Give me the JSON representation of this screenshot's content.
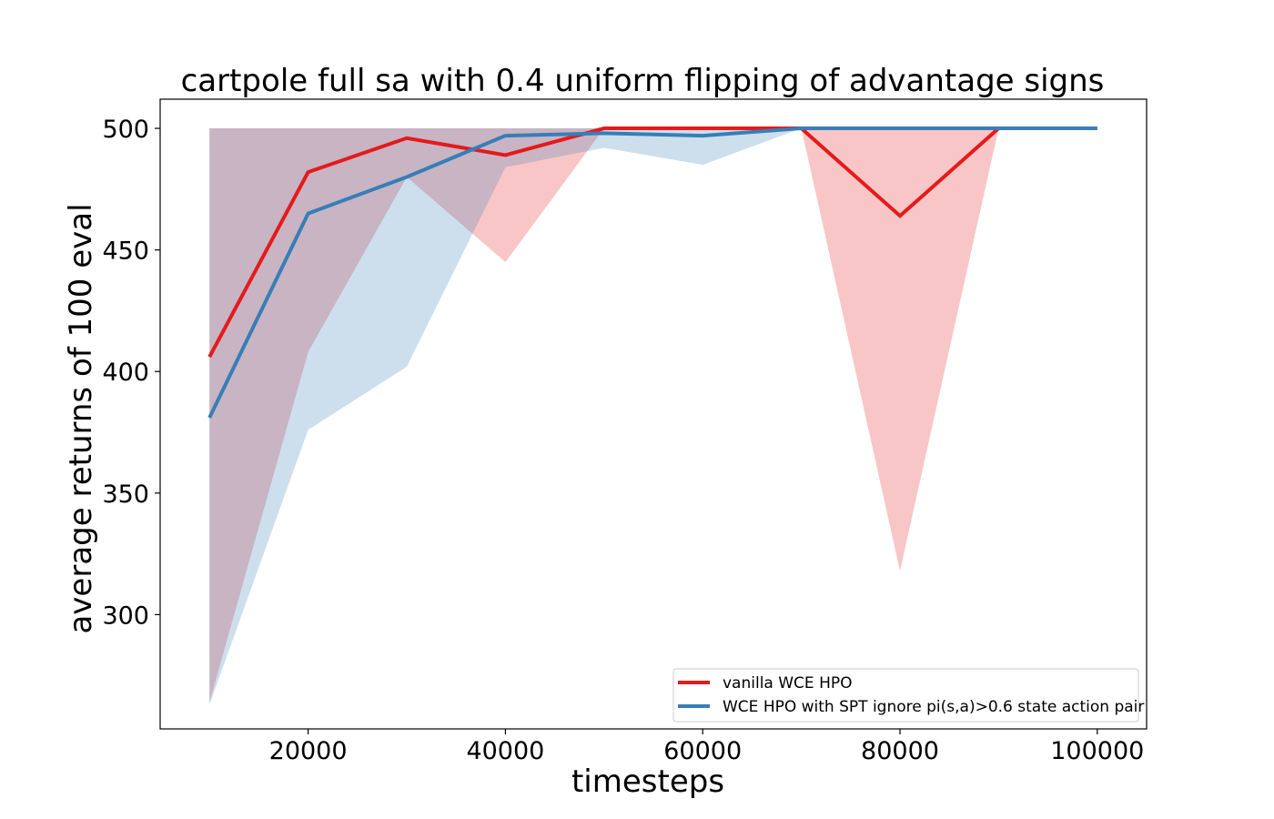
{
  "chart_data": {
    "type": "line",
    "title": "cartpole full sa with 0.4 uniform flipping of advantage signs",
    "xlabel": "timesteps",
    "ylabel": "average returns of 100 eval",
    "xlim": [
      5000,
      105000
    ],
    "ylim": [
      253,
      512
    ],
    "xticks": [
      20000,
      40000,
      60000,
      80000,
      100000
    ],
    "yticks": [
      300,
      350,
      400,
      450,
      500
    ],
    "grid": false,
    "legend_position": "lower-right",
    "x": [
      10000,
      20000,
      30000,
      40000,
      50000,
      60000,
      70000,
      80000,
      90000,
      100000
    ],
    "series": [
      {
        "name": "vanilla WCE HPO",
        "color": "#e41a1c",
        "values": [
          406,
          482,
          496,
          489,
          500,
          500,
          500,
          464,
          500,
          500
        ],
        "lower": [
          264,
          408,
          480,
          445,
          500,
          500,
          500,
          318,
          500,
          500
        ],
        "upper": [
          500,
          500,
          500,
          500,
          500,
          500,
          500,
          500,
          500,
          500
        ]
      },
      {
        "name": "WCE HPO with SPT ignore pi(s,a)>0.6 state action pair",
        "color": "#377eb8",
        "values": [
          381,
          465,
          480,
          497,
          498,
          497,
          500,
          500,
          500,
          500
        ],
        "lower": [
          263,
          376,
          402,
          484,
          492,
          485,
          500,
          500,
          500,
          500
        ],
        "upper": [
          500,
          500,
          500,
          500,
          500,
          500,
          500,
          500,
          500,
          500
        ]
      }
    ]
  }
}
